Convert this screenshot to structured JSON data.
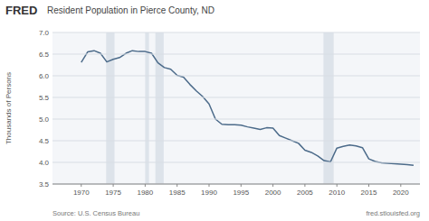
{
  "chart_data": {
    "type": "line",
    "title": "Resident Population in Pierce County, ND",
    "y_label": "Thousands of Persons",
    "annotations": [
      "FRED",
      "Source: U.S. Census Bureau",
      "fred.stlouisfed.org"
    ],
    "color": "#4c6b8a",
    "grid": true,
    "xlim": [
      1965.5,
      2023.0
    ],
    "xticks": [
      1970,
      1975,
      1980,
      1985,
      1990,
      1995,
      2000,
      2005,
      2010,
      2015,
      2020
    ],
    "ylim": [
      3.5,
      7.0
    ],
    "yticks": [
      3.5,
      {
        "value": 4.0,
        "label": "4.0"
      },
      4.5,
      {
        "value": 5.0,
        "label": "5.0"
      },
      5.5,
      {
        "value": 6.0,
        "label": "6.0"
      },
      6.5,
      {
        "value": 7.0,
        "label": "7.0"
      }
    ],
    "recession_bands": [
      [
        1973.9,
        1975.2
      ],
      [
        1980.0,
        1980.6
      ],
      [
        1981.6,
        1982.9
      ],
      [
        2007.9,
        2009.5
      ]
    ],
    "x": [
      1970,
      1971,
      1972,
      1973,
      1974,
      1975,
      1976,
      1977,
      1978,
      1979,
      1980,
      1981,
      1982,
      1983,
      1984,
      1985,
      1986,
      1987,
      1988,
      1989,
      1990,
      1991,
      1992,
      1993,
      1994,
      1995,
      1996,
      1997,
      1998,
      1999,
      2000,
      2001,
      2002,
      2003,
      2004,
      2005,
      2006,
      2007,
      2008,
      2009,
      2010,
      2011,
      2012,
      2013,
      2014,
      2015,
      2016,
      2017,
      2018,
      2019,
      2020,
      2021,
      2022
    ],
    "values": [
      6.31,
      6.55,
      6.58,
      6.52,
      6.32,
      6.38,
      6.42,
      6.52,
      6.58,
      6.56,
      6.56,
      6.52,
      6.3,
      6.19,
      6.15,
      6.01,
      5.97,
      5.8,
      5.65,
      5.52,
      5.35,
      5.0,
      4.88,
      4.87,
      4.87,
      4.86,
      4.82,
      4.79,
      4.76,
      4.8,
      4.79,
      4.62,
      4.56,
      4.5,
      4.44,
      4.28,
      4.23,
      4.15,
      4.04,
      4.01,
      4.33,
      4.37,
      4.4,
      4.38,
      4.34,
      4.08,
      4.02,
      3.99,
      3.98,
      3.97,
      3.96,
      3.95,
      3.93
    ]
  }
}
